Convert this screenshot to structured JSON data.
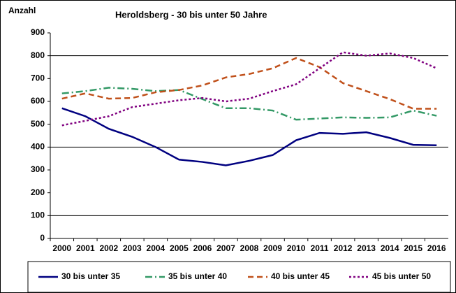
{
  "chart_data": {
    "type": "line",
    "title": "Heroldsberg - 30 bis unter 50 Jahre",
    "y_label": "Anzahl",
    "categories": [
      "2000",
      "2001",
      "2002",
      "2003",
      "2004",
      "2005",
      "2006",
      "2007",
      "2008",
      "2009",
      "2010",
      "2011",
      "2012",
      "2013",
      "2014",
      "2015",
      "2016"
    ],
    "series": [
      {
        "name": "30 bis unter 35",
        "color": "#000080",
        "style": "solid",
        "values": [
          570,
          535,
          480,
          445,
          400,
          345,
          335,
          320,
          340,
          365,
          430,
          462,
          458,
          465,
          440,
          410,
          408
        ]
      },
      {
        "name": "35 bis unter 40",
        "color": "#339966",
        "style": "dashdot",
        "values": [
          635,
          645,
          660,
          655,
          645,
          650,
          610,
          570,
          570,
          560,
          520,
          525,
          530,
          528,
          530,
          560,
          537
        ]
      },
      {
        "name": "40 bis unter 45",
        "color": "#c0501a",
        "style": "dashed",
        "values": [
          612,
          635,
          612,
          615,
          640,
          650,
          670,
          705,
          720,
          745,
          790,
          750,
          680,
          645,
          610,
          568,
          568
        ]
      },
      {
        "name": "45 bis unter 50",
        "color": "#800080",
        "style": "dotted",
        "values": [
          495,
          515,
          535,
          575,
          590,
          605,
          615,
          600,
          612,
          645,
          675,
          745,
          815,
          800,
          810,
          790,
          745
        ]
      }
    ],
    "ylim": [
      0,
      900
    ],
    "yticks": [
      0,
      100,
      200,
      300,
      400,
      500,
      600,
      700,
      800,
      900
    ],
    "grid_lines": [
      100,
      400,
      800
    ],
    "legend": "bottom"
  }
}
